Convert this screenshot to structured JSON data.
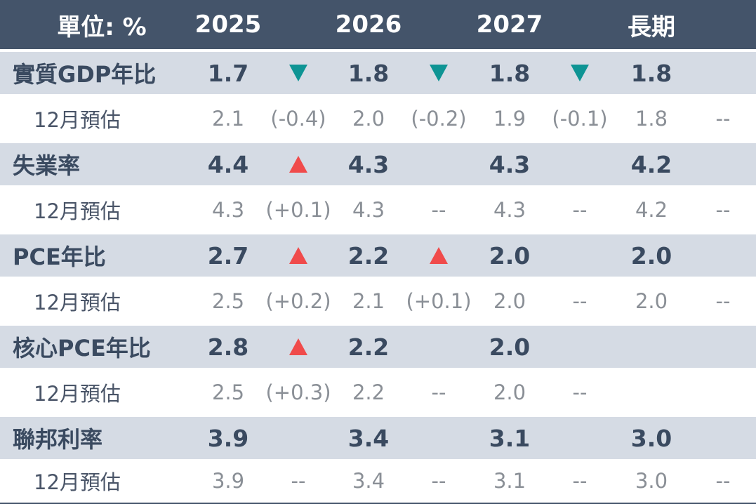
{
  "header": {
    "unit_label": "單位: %",
    "col_2025": "2025",
    "col_2026": "2026",
    "col_2027": "2027",
    "col_long": "長期"
  },
  "colors": {
    "header_bg": "#44546a",
    "main_row_bg": "#d5dbe4",
    "arrow_down": "#0e9494",
    "arrow_up": "#f04b4b"
  },
  "rows": [
    {
      "label": "實質GDP年比",
      "y2025": "1.7",
      "a2025": "down",
      "y2026": "1.8",
      "a2026": "down",
      "y2027": "1.8",
      "a2027": "down",
      "long": "1.8",
      "prev": {
        "label": "12月預估",
        "y2025": "2.1",
        "d2025": "(-0.4)",
        "y2026": "2.0",
        "d2026": "(-0.2)",
        "y2027": "1.9",
        "d2027": "(-0.1)",
        "long": "1.8",
        "dlong": "--"
      }
    },
    {
      "label": "失業率",
      "y2025": "4.4",
      "a2025": "up",
      "y2026": "4.3",
      "a2026": "",
      "y2027": "4.3",
      "a2027": "",
      "long": "4.2",
      "prev": {
        "label": "12月預估",
        "y2025": "4.3",
        "d2025": "(+0.1)",
        "y2026": "4.3",
        "d2026": "--",
        "y2027": "4.3",
        "d2027": "--",
        "long": "4.2",
        "dlong": "--"
      }
    },
    {
      "label": "PCE年比",
      "y2025": "2.7",
      "a2025": "up",
      "y2026": "2.2",
      "a2026": "up",
      "y2027": "2.0",
      "a2027": "",
      "long": "2.0",
      "prev": {
        "label": "12月預估",
        "y2025": "2.5",
        "d2025": "(+0.2)",
        "y2026": "2.1",
        "d2026": "(+0.1)",
        "y2027": "2.0",
        "d2027": "--",
        "long": "2.0",
        "dlong": "--"
      }
    },
    {
      "label": "核心PCE年比",
      "y2025": "2.8",
      "a2025": "up",
      "y2026": "2.2",
      "a2026": "",
      "y2027": "2.0",
      "a2027": "",
      "long": "",
      "prev": {
        "label": "12月預估",
        "y2025": "2.5",
        "d2025": "(+0.3)",
        "y2026": "2.2",
        "d2026": "--",
        "y2027": "2.0",
        "d2027": "--",
        "long": "",
        "dlong": ""
      }
    },
    {
      "label": "聯邦利率",
      "y2025": "3.9",
      "a2025": "",
      "y2026": "3.4",
      "a2026": "",
      "y2027": "3.1",
      "a2027": "",
      "long": "3.0",
      "prev": {
        "label": "12月預估",
        "y2025": "3.9",
        "d2025": "--",
        "y2026": "3.4",
        "d2026": "--",
        "y2027": "3.1",
        "d2027": "--",
        "long": "3.0",
        "dlong": "--"
      }
    }
  ]
}
